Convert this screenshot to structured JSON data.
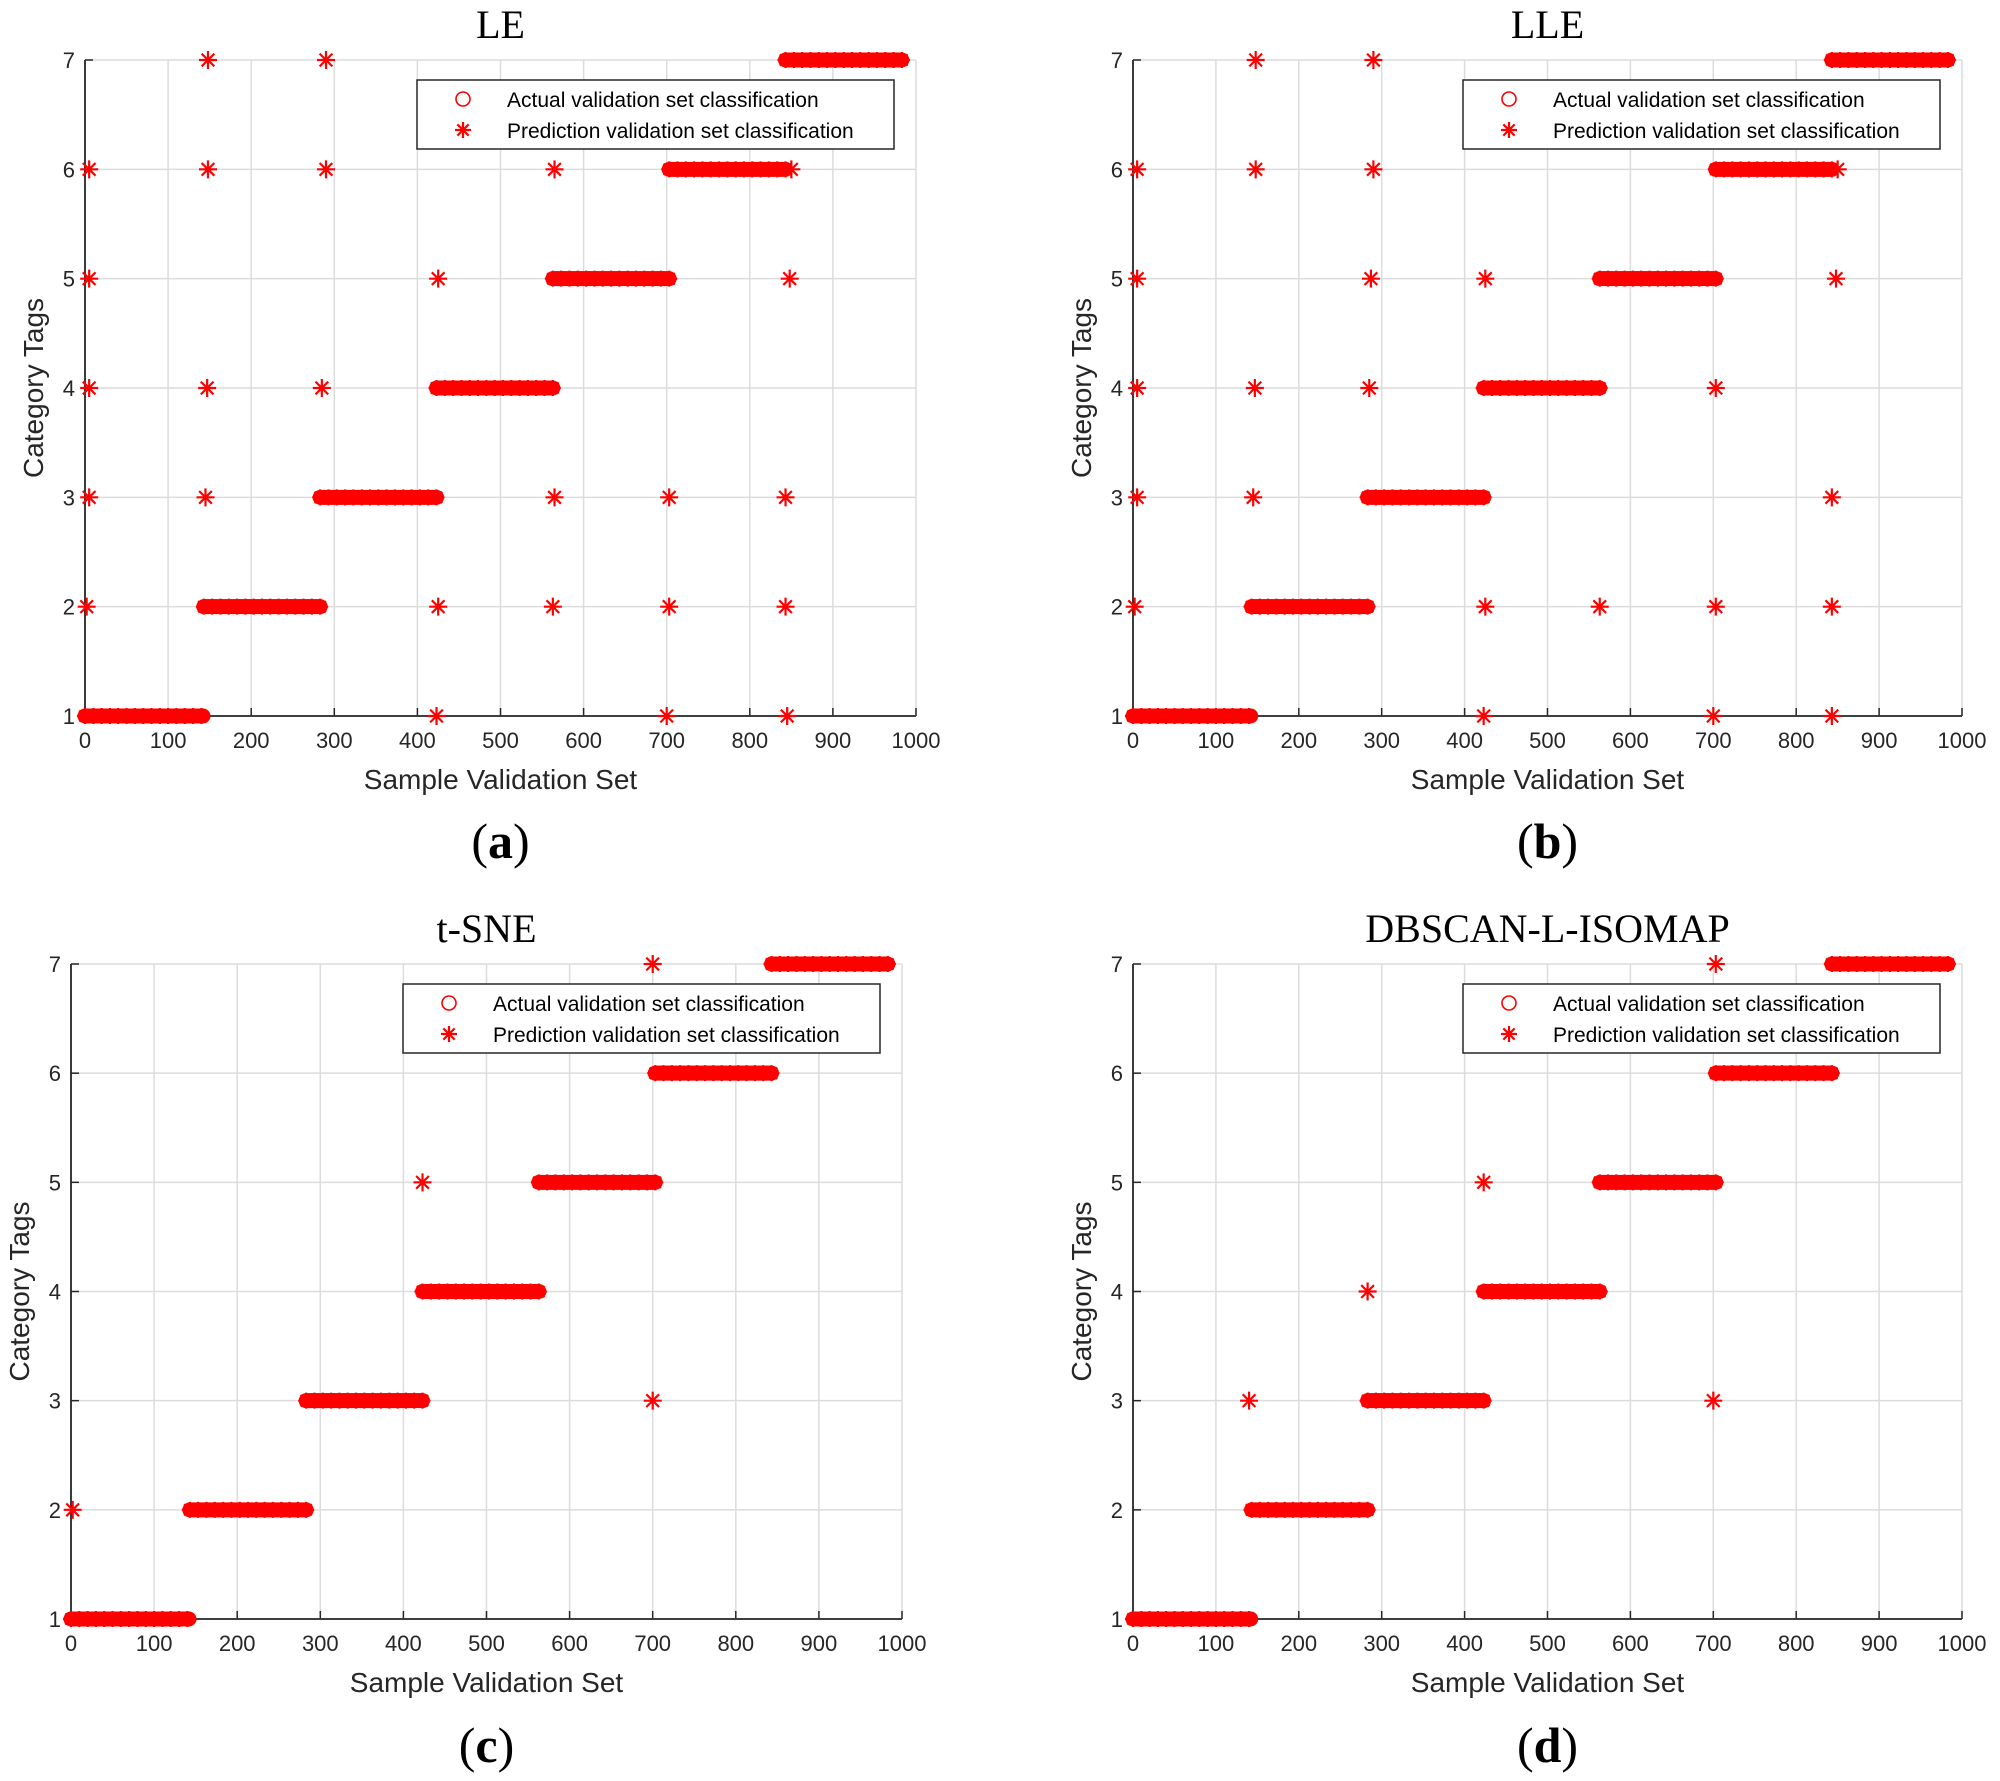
{
  "colors": {
    "marker": "#ff0000",
    "grid": "#dcdcdc",
    "axis": "#262626"
  },
  "chart_data": [
    {
      "type": "scatter",
      "title": "LE",
      "caption": "a",
      "xlabel": "Sample Validation Set",
      "ylabel": "Category Tags",
      "xlim": [
        0,
        1000
      ],
      "ylim": [
        1,
        7
      ],
      "xticks": [
        "0",
        "100",
        "200",
        "300",
        "400",
        "500",
        "600",
        "700",
        "800",
        "900",
        "1000"
      ],
      "yticks": [
        "1",
        "2",
        "3",
        "4",
        "5",
        "6",
        "7"
      ],
      "grid": true,
      "legend": {
        "placement": "top-right",
        "entries": [
          "Actual validation set classification",
          "Prediction validation set classification"
        ]
      },
      "actual_segments": [
        [
          1,
          0,
          143
        ],
        [
          2,
          143,
          283
        ],
        [
          3,
          283,
          423
        ],
        [
          4,
          423,
          563
        ],
        [
          5,
          563,
          703
        ],
        [
          6,
          703,
          843
        ],
        [
          7,
          843,
          983
        ]
      ],
      "prediction_outliers": [
        [
          148,
          7
        ],
        [
          290,
          7
        ],
        [
          5,
          6
        ],
        [
          148,
          6
        ],
        [
          290,
          6
        ],
        [
          565,
          6
        ],
        [
          850,
          6
        ],
        [
          5,
          5
        ],
        [
          425,
          5
        ],
        [
          848,
          5
        ],
        [
          5,
          4
        ],
        [
          147,
          4
        ],
        [
          285,
          4
        ],
        [
          5,
          3
        ],
        [
          145,
          3
        ],
        [
          565,
          3
        ],
        [
          703,
          3
        ],
        [
          843,
          3
        ],
        [
          2,
          2
        ],
        [
          425,
          2
        ],
        [
          563,
          2
        ],
        [
          703,
          2
        ],
        [
          843,
          2
        ],
        [
          423,
          1
        ],
        [
          700,
          1
        ],
        [
          845,
          1
        ]
      ]
    },
    {
      "type": "scatter",
      "title": "LLE",
      "caption": "b",
      "xlabel": "Sample Validation Set",
      "ylabel": "Category Tags",
      "xlim": [
        0,
        1000
      ],
      "ylim": [
        1,
        7
      ],
      "xticks": [
        "0",
        "100",
        "200",
        "300",
        "400",
        "500",
        "600",
        "700",
        "800",
        "900",
        "1000"
      ],
      "yticks": [
        "1",
        "2",
        "3",
        "4",
        "5",
        "6",
        "7"
      ],
      "grid": true,
      "legend": {
        "placement": "top-right",
        "entries": [
          "Actual validation set classification",
          "Prediction validation set classification"
        ]
      },
      "actual_segments": [
        [
          1,
          0,
          143
        ],
        [
          2,
          143,
          283
        ],
        [
          3,
          283,
          423
        ],
        [
          4,
          423,
          563
        ],
        [
          5,
          563,
          703
        ],
        [
          6,
          703,
          843
        ],
        [
          7,
          843,
          983
        ]
      ],
      "prediction_outliers": [
        [
          148,
          7
        ],
        [
          290,
          7
        ],
        [
          5,
          6
        ],
        [
          148,
          6
        ],
        [
          290,
          6
        ],
        [
          850,
          6
        ],
        [
          5,
          5
        ],
        [
          287,
          5
        ],
        [
          425,
          5
        ],
        [
          848,
          5
        ],
        [
          5,
          4
        ],
        [
          147,
          4
        ],
        [
          285,
          4
        ],
        [
          703,
          4
        ],
        [
          5,
          3
        ],
        [
          145,
          3
        ],
        [
          843,
          3
        ],
        [
          2,
          2
        ],
        [
          425,
          2
        ],
        [
          563,
          2
        ],
        [
          703,
          2
        ],
        [
          843,
          2
        ],
        [
          423,
          1
        ],
        [
          700,
          1
        ],
        [
          843,
          1
        ]
      ]
    },
    {
      "type": "scatter",
      "title": "t-SNE",
      "caption": "c",
      "xlabel": "Sample Validation Set",
      "ylabel": "Category Tags",
      "xlim": [
        0,
        1000
      ],
      "ylim": [
        1,
        7
      ],
      "xticks": [
        "0",
        "100",
        "200",
        "300",
        "400",
        "500",
        "600",
        "700",
        "800",
        "900",
        "1000"
      ],
      "yticks": [
        "1",
        "2",
        "3",
        "4",
        "5",
        "6",
        "7"
      ],
      "grid": true,
      "legend": {
        "placement": "top-right",
        "entries": [
          "Actual validation set classification",
          "Prediction validation set classification"
        ]
      },
      "actual_segments": [
        [
          1,
          0,
          143
        ],
        [
          2,
          143,
          283
        ],
        [
          3,
          283,
          423
        ],
        [
          4,
          423,
          563
        ],
        [
          5,
          563,
          703
        ],
        [
          6,
          703,
          843
        ],
        [
          7,
          843,
          983
        ]
      ],
      "prediction_outliers": [
        [
          700,
          7
        ],
        [
          423,
          5
        ],
        [
          700,
          3
        ],
        [
          2,
          2
        ]
      ]
    },
    {
      "type": "scatter",
      "title": "DBSCAN-L-ISOMAP",
      "caption": "d",
      "xlabel": "Sample Validation Set",
      "ylabel": "Category Tags",
      "xlim": [
        0,
        1000
      ],
      "ylim": [
        1,
        7
      ],
      "xticks": [
        "0",
        "100",
        "200",
        "300",
        "400",
        "500",
        "600",
        "700",
        "800",
        "900",
        "1000"
      ],
      "yticks": [
        "1",
        "2",
        "3",
        "4",
        "5",
        "6",
        "7"
      ],
      "grid": true,
      "legend": {
        "placement": "top-right",
        "entries": [
          "Actual validation set classification",
          "Prediction validation set classification"
        ]
      },
      "actual_segments": [
        [
          1,
          0,
          143
        ],
        [
          2,
          143,
          283
        ],
        [
          3,
          283,
          423
        ],
        [
          4,
          423,
          563
        ],
        [
          5,
          563,
          703
        ],
        [
          6,
          703,
          843
        ],
        [
          7,
          843,
          983
        ]
      ],
      "prediction_outliers": [
        [
          703,
          7
        ],
        [
          423,
          5
        ],
        [
          283,
          4
        ],
        [
          140,
          3
        ],
        [
          700,
          3
        ]
      ]
    }
  ]
}
